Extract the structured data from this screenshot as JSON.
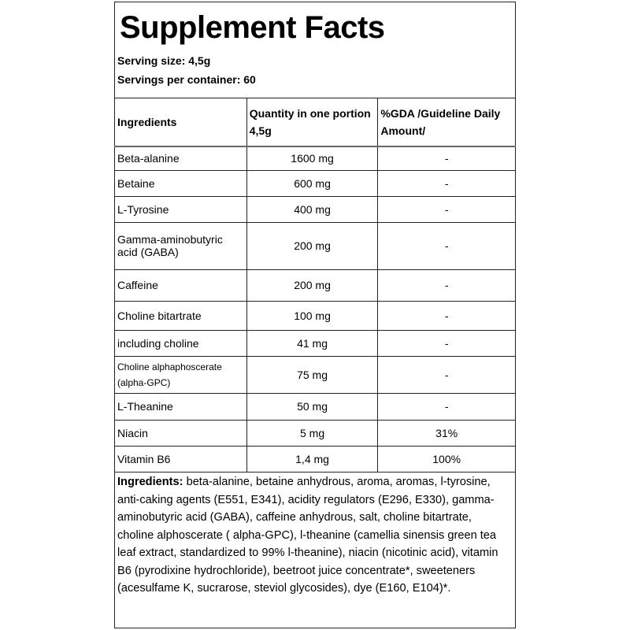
{
  "title": "Supplement Facts",
  "serving_size": "Serving size: 4,5g",
  "servings_per_container": "Servings per container: 60",
  "table": {
    "header": [
      "Ingredients",
      "Quantity in one portion 4,5g",
      "%GDA /Guideline Daily Amount/"
    ],
    "rows": [
      [
        "Beta-alanine",
        "1600 mg",
        "-"
      ],
      [
        "Betaine",
        "600 mg",
        "-"
      ],
      [
        "L-Tyrosine",
        "400 mg",
        "-"
      ],
      [
        "Gamma-aminobutyric acid (GABA)",
        "200 mg",
        "-"
      ],
      [
        "Caffeine",
        "200 mg",
        "-"
      ],
      [
        "Choline bitartrate",
        "100 mg",
        "-"
      ],
      [
        "including choline",
        "41 mg",
        "-"
      ],
      [
        "Choline alphaphoscerate (alpha-GPC)",
        "75 mg",
        "-"
      ],
      [
        "L-Theanine",
        "50 mg",
        "-"
      ],
      [
        "Niacin",
        "5 mg",
        "31%"
      ],
      [
        "Vitamin B6",
        "1,4 mg",
        "100%"
      ]
    ]
  },
  "ingredients": {
    "label": "Ingredients:",
    "text": "beta-alanine, betaine anhydrous, aroma, aromas, l-tyrosine, anti-caking agents (E551, E341), acidity regulators (E296, E330), gamma-aminobutyric acid (GABA), caffeine anhydrous, salt, choline bitartrate, choline alphoscerate ( alpha-GPC), l-theanine (camellia sinensis green tea leaf extract, standardized to 99% l-theanine), niacin (nicotinic acid), vitamin B6 (pyrodixine hydrochloride), beetroot juice concentrate*, sweeteners (acesulfame K, sucrarose, steviol glycosides), dye (E160, E104)*."
  }
}
